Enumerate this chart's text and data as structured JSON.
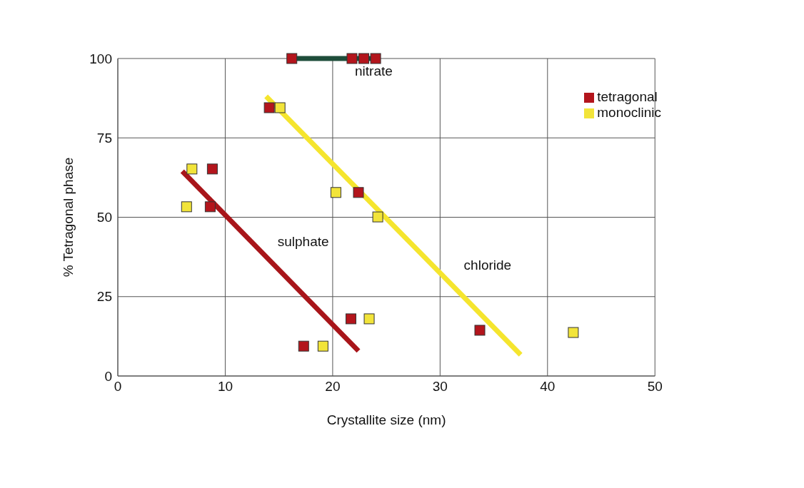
{
  "chart_data": {
    "type": "scatter",
    "xlabel": "Crystallite size (nm)",
    "ylabel": "% Tetragonal phase",
    "xlim": [
      0,
      50
    ],
    "xticks": [
      0,
      10,
      20,
      30,
      40,
      50
    ],
    "ylim": [
      0,
      100
    ],
    "yticks": [
      0,
      25,
      50,
      75,
      100
    ],
    "grid": true,
    "legend": "top right",
    "series": [
      {
        "name": "tetragonal",
        "marker": "square",
        "color": "#b3151c",
        "x": [
          16.2,
          21.8,
          22.9,
          24.0,
          14.1,
          8.8,
          8.6,
          22.4,
          21.7,
          17.3,
          33.7
        ],
        "values": [
          100,
          100,
          100,
          100,
          84.5,
          65.2,
          53.3,
          57.8,
          18,
          9.4,
          14.4
        ]
      },
      {
        "name": "monoclinic",
        "marker": "square",
        "color": "#f2e43a",
        "x": [
          15.1,
          6.9,
          6.4,
          20.3,
          24.2,
          23.4,
          19.1,
          42.4
        ],
        "values": [
          84.5,
          65.2,
          53.3,
          57.8,
          50.1,
          18,
          9.4,
          13.7
        ]
      },
      {
        "name": "nitrate",
        "type": "line",
        "color": "#1e4d3a",
        "x": [
          16.2,
          24.0
        ],
        "values": [
          100,
          100
        ]
      },
      {
        "name": "sulphate",
        "type": "line",
        "color": "#a8151a",
        "x": [
          6.0,
          22.4
        ],
        "values": [
          64.5,
          7.9
        ]
      },
      {
        "name": "chloride",
        "type": "line",
        "color": "#f5e52e",
        "x": [
          13.8,
          37.5
        ],
        "values": [
          88.1,
          6.7
        ]
      }
    ]
  }
}
